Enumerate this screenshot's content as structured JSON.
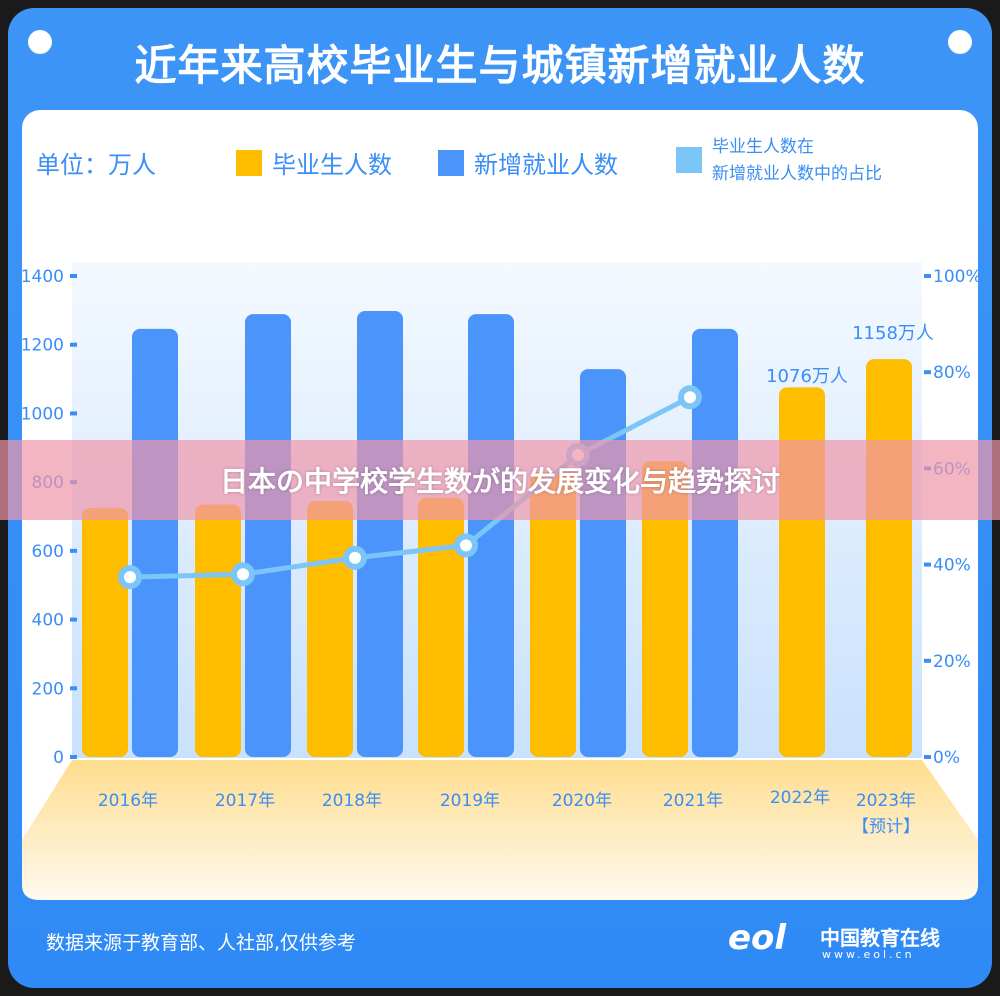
{
  "header": {
    "title": "近年来高校毕业生与城镇新增就业人数"
  },
  "legend": {
    "unit": "单位：万人",
    "graduates": "毕业生人数",
    "new_jobs": "新增就业人数",
    "ratio_line1": "毕业生人数在",
    "ratio_line2": "新增就业人数中的占比"
  },
  "footer": {
    "source": "数据来源于教育部、人社部,仅供参考",
    "logo_mark": "eol",
    "logo_name": "中国教育在线",
    "logo_url": "www.eol.cn"
  },
  "overlay": {
    "banner": "日本の中学校学生数が的发展变化与趋势探讨"
  },
  "colors": {
    "frame": "#3a8ef6",
    "graduates": "#ffbd00",
    "new_jobs": "#4a94fb",
    "ratio": "#7cc5f8",
    "axis_text": "#3a8ef6"
  },
  "chart_data": {
    "type": "bar",
    "categories": [
      "2016年",
      "2017年",
      "2018年",
      "2019年",
      "2020年",
      "2021年",
      "2022年",
      "2023年"
    ],
    "category_note": {
      "2023年": "【预计】"
    },
    "series": [
      {
        "name": "毕业生人数",
        "axis": "left",
        "values": [
          725,
          735,
          745,
          755,
          829,
          861,
          1076,
          1158
        ]
      },
      {
        "name": "新增就业人数",
        "axis": "left",
        "values": [
          1246,
          1289,
          1298,
          1289,
          1129,
          1246,
          null,
          null
        ]
      },
      {
        "name": "毕业生人数在新增就业人数中的占比",
        "type": "line",
        "axis": "right",
        "values": [
          37.4,
          38,
          41.4,
          44,
          62.8,
          74.8,
          null,
          null
        ]
      }
    ],
    "data_labels": {
      "2022年": "1076万人",
      "2023年": "1158万人"
    },
    "ylim": [
      0,
      1400
    ],
    "yticks": [
      "0",
      "200",
      "400",
      "600",
      "800",
      "1000",
      "1200",
      "1400"
    ],
    "y2lim": [
      0,
      100
    ],
    "y2ticks": [
      "0%",
      "20%",
      "40%",
      "60%",
      "80%",
      "100%"
    ],
    "grid": false,
    "legend": "top"
  }
}
